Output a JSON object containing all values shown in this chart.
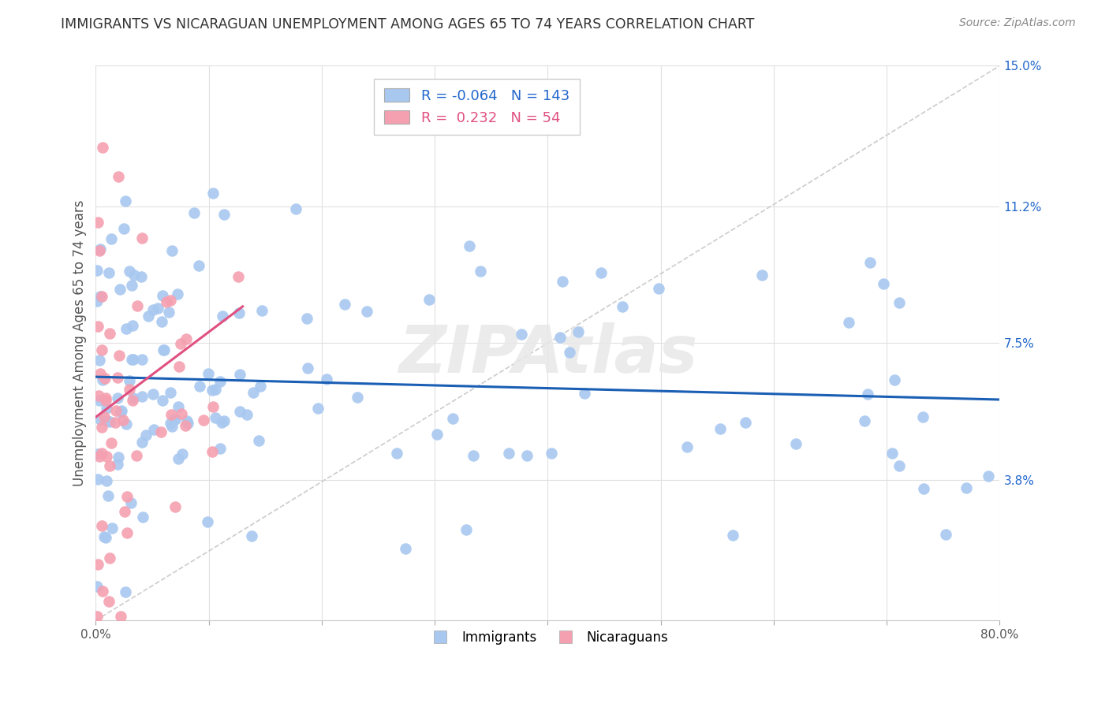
{
  "title": "IMMIGRANTS VS NICARAGUAN UNEMPLOYMENT AMONG AGES 65 TO 74 YEARS CORRELATION CHART",
  "source": "Source: ZipAtlas.com",
  "ylabel": "Unemployment Among Ages 65 to 74 years",
  "xlim": [
    0,
    0.8
  ],
  "ylim": [
    0,
    0.15
  ],
  "ytick_labels_right": [
    "15.0%",
    "11.2%",
    "7.5%",
    "3.8%"
  ],
  "ytick_vals_right": [
    0.15,
    0.112,
    0.075,
    0.038
  ],
  "watermark": "ZIPAtlas",
  "blue_color": "#a8c8f0",
  "pink_color": "#f5a0b0",
  "blue_line_color": "#1a5fb4",
  "pink_line_color": "#e05080",
  "legend_r_blue": "-0.064",
  "legend_n_blue": "143",
  "legend_r_pink": "0.232",
  "legend_n_pink": "54",
  "grid_color": "#e0e0e0",
  "diag_color": "#cccccc"
}
